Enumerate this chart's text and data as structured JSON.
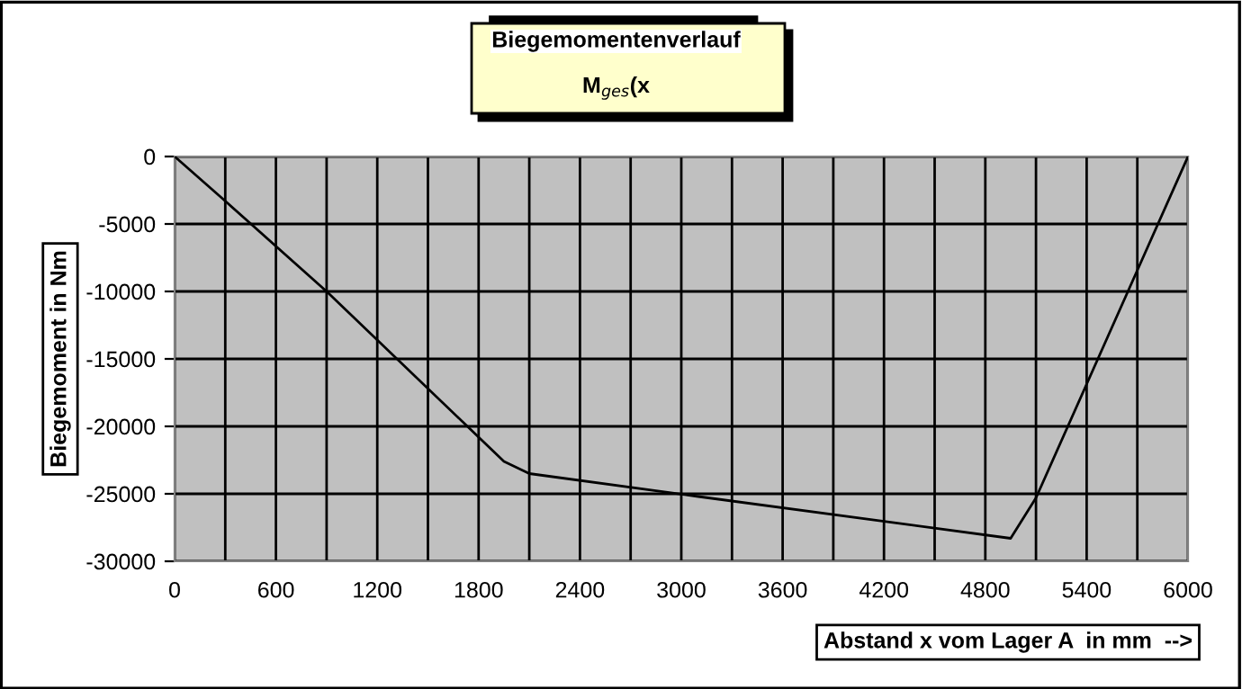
{
  "chart_data": {
    "type": "line",
    "title": "Biegemomentenverlauf",
    "subtitle": "M$_{ges}$(x",
    "xlabel": "Abstand x vom Lager A  in mm  -->",
    "ylabel": "Biegemoment in Nm",
    "x": [
      0,
      300,
      900,
      1800,
      1950,
      2100,
      3100,
      4950,
      5100,
      6000
    ],
    "series": [
      {
        "color": "#000000",
        "values": [
          0,
          -3300,
          -10000,
          -20800,
          -22600,
          -23500,
          -25200,
          -28300,
          -25300,
          0
        ]
      }
    ],
    "xlim": [
      0,
      6000
    ],
    "ylim": [
      -30000,
      0
    ],
    "xticks": [
      0,
      {
        "value": 300,
        "label": null
      },
      600,
      {
        "value": 900,
        "label": null
      },
      1200,
      {
        "value": 1500,
        "label": null
      },
      1800,
      {
        "value": 2100,
        "label": null
      },
      2400,
      {
        "value": 2700,
        "label": null
      },
      3000,
      {
        "value": 3300,
        "label": null
      },
      3600,
      {
        "value": 3900,
        "label": null
      },
      4200,
      {
        "value": 4500,
        "label": null
      },
      4800,
      {
        "value": 5100,
        "label": null
      },
      5400,
      {
        "value": 5700,
        "label": null
      },
      6000
    ],
    "yticks": [
      -30000,
      -25000,
      -20000,
      -15000,
      -10000,
      -5000,
      0
    ],
    "grid": true,
    "marker": "none",
    "line_style": "solid",
    "legend": false
  }
}
